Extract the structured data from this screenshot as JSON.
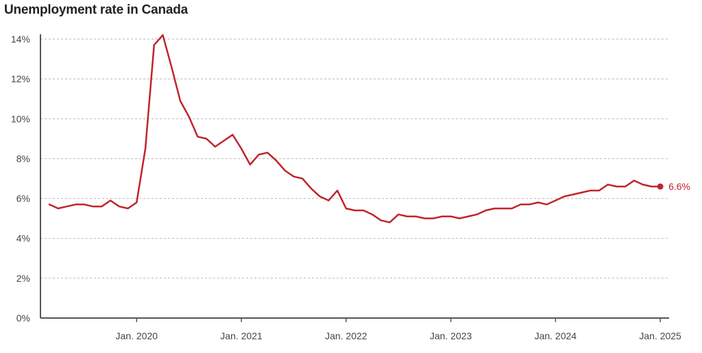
{
  "title": "Unemployment rate in Canada",
  "colors": {
    "line": "#c0242c",
    "grid": "#b5b5b5",
    "axis": "#555555",
    "text": "#444444"
  },
  "chart_data": {
    "type": "line",
    "title": "Unemployment rate in Canada",
    "xlabel": "",
    "ylabel": "",
    "ylim": [
      0,
      14
    ],
    "y_ticks": [
      0,
      2,
      4,
      6,
      8,
      10,
      12,
      14
    ],
    "y_tick_labels": [
      "0%",
      "2%",
      "4%",
      "6%",
      "8%",
      "10%",
      "12%",
      "14%"
    ],
    "x_ticks": [
      {
        "label": "Jan. 2020",
        "index": 10
      },
      {
        "label": "Jan. 2021",
        "index": 22
      },
      {
        "label": "Jan. 2022",
        "index": 34
      },
      {
        "label": "Jan. 2023",
        "index": 46
      },
      {
        "label": "Jan. 2024",
        "index": 58
      },
      {
        "label": "Jan. 2025",
        "index": 70
      }
    ],
    "x_start": "Mar. 2019",
    "x_end": "Jan. 2025",
    "series": [
      {
        "name": "Unemployment rate",
        "unit": "%",
        "values": [
          5.7,
          5.5,
          5.6,
          5.7,
          5.7,
          5.6,
          5.6,
          5.9,
          5.6,
          5.5,
          5.8,
          8.5,
          13.7,
          14.2,
          12.6,
          10.9,
          10.1,
          9.1,
          9.0,
          8.6,
          8.9,
          9.2,
          8.5,
          7.7,
          8.2,
          8.3,
          7.9,
          7.4,
          7.1,
          7.0,
          6.5,
          6.1,
          5.9,
          6.4,
          5.5,
          5.4,
          5.4,
          5.2,
          4.9,
          4.8,
          5.2,
          5.1,
          5.1,
          5.0,
          5.0,
          5.1,
          5.1,
          5.0,
          5.1,
          5.2,
          5.4,
          5.5,
          5.5,
          5.5,
          5.7,
          5.7,
          5.8,
          5.7,
          5.9,
          6.1,
          6.2,
          6.3,
          6.4,
          6.4,
          6.7,
          6.6,
          6.6,
          6.9,
          6.7,
          6.6,
          6.6
        ]
      }
    ],
    "last_value_label": "6.6%"
  }
}
